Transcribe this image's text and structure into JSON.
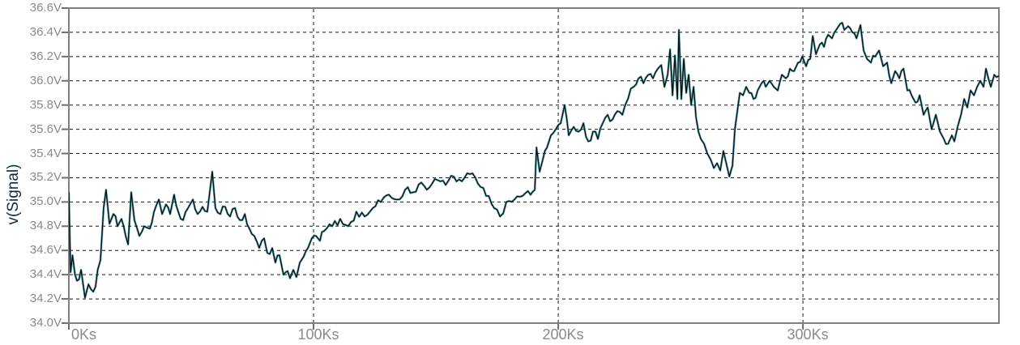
{
  "chart_data": {
    "type": "line",
    "title": "",
    "xlabel": "",
    "ylabel": "v(Signal)",
    "x_unit": "Ks",
    "y_unit": "V",
    "xlim": [
      0,
      380.1
    ],
    "ylim": [
      34.0,
      36.6
    ],
    "grid": {
      "horizontal": true,
      "vertical": true,
      "style": "dashed"
    },
    "legend": "none",
    "x_ticks": [
      {
        "value": 0,
        "label": "0Ks"
      },
      {
        "value": 100,
        "label": "100Ks"
      },
      {
        "value": 200,
        "label": "200Ks"
      },
      {
        "value": 300,
        "label": "300Ks"
      }
    ],
    "y_ticks": [
      {
        "value": 34.0,
        "label": "34.0V"
      },
      {
        "value": 34.2,
        "label": "34.2V"
      },
      {
        "value": 34.4,
        "label": "34.4V"
      },
      {
        "value": 34.6,
        "label": "34.6V"
      },
      {
        "value": 34.8,
        "label": "34.8V"
      },
      {
        "value": 35.0,
        "label": "35.0V"
      },
      {
        "value": 35.2,
        "label": "35.2V"
      },
      {
        "value": 35.4,
        "label": "35.4V"
      },
      {
        "value": 35.6,
        "label": "35.6V"
      },
      {
        "value": 35.8,
        "label": "35.8V"
      },
      {
        "value": 36.0,
        "label": "36.0V"
      },
      {
        "value": 36.2,
        "label": "36.2V"
      },
      {
        "value": 36.4,
        "label": "36.4V"
      },
      {
        "value": 36.6,
        "label": "36.6V"
      }
    ],
    "colors": {
      "background": "#ffffff",
      "frame": "#808080",
      "grid": "#141414",
      "tick_mark": "#6e6e6e",
      "tick_text": "#8a8a8a",
      "axis_title": "#0c2e33",
      "trace_core": "#031417",
      "trace_glow": "#1a7f86"
    },
    "texture": {
      "noise_amplitude": 0.035,
      "sample_step": 1.1,
      "seed": 7
    },
    "series": [
      {
        "name": "v(Signal)",
        "points": [
          [
            0,
            35.08
          ],
          [
            0.7,
            34.42
          ],
          [
            1.5,
            34.56
          ],
          [
            2.5,
            34.4
          ],
          [
            3.3,
            34.35
          ],
          [
            5,
            34.44
          ],
          [
            6.6,
            34.21
          ],
          [
            8,
            34.32
          ],
          [
            9,
            34.28
          ],
          [
            10.9,
            34.3
          ],
          [
            11.8,
            34.44
          ],
          [
            12.9,
            34.52
          ],
          [
            14.2,
            34.95
          ],
          [
            15.2,
            35.1
          ],
          [
            16.6,
            34.82
          ],
          [
            18.2,
            34.9
          ],
          [
            19.9,
            34.8
          ],
          [
            21.5,
            34.86
          ],
          [
            23.2,
            34.72
          ],
          [
            24.2,
            34.65
          ],
          [
            25.5,
            35.08
          ],
          [
            26.8,
            34.85
          ],
          [
            28.8,
            34.72
          ],
          [
            30.8,
            34.8
          ],
          [
            33.1,
            34.78
          ],
          [
            34.8,
            34.92
          ],
          [
            36.8,
            35.02
          ],
          [
            38.1,
            34.9
          ],
          [
            39.7,
            34.98
          ],
          [
            41.4,
            34.9
          ],
          [
            43,
            35.06
          ],
          [
            44.7,
            34.92
          ],
          [
            46.7,
            34.85
          ],
          [
            48.7,
            34.95
          ],
          [
            50.7,
            35.02
          ],
          [
            52.6,
            34.9
          ],
          [
            54.6,
            34.96
          ],
          [
            56.6,
            34.92
          ],
          [
            58.6,
            35.25
          ],
          [
            59.9,
            34.95
          ],
          [
            61.9,
            34.9
          ],
          [
            63.9,
            34.96
          ],
          [
            65.9,
            34.88
          ],
          [
            67.9,
            34.95
          ],
          [
            69.9,
            34.85
          ],
          [
            71.9,
            34.9
          ],
          [
            73.8,
            34.78
          ],
          [
            75.8,
            34.72
          ],
          [
            77.8,
            34.62
          ],
          [
            79.8,
            34.7
          ],
          [
            81.1,
            34.58
          ],
          [
            83.1,
            34.62
          ],
          [
            84.4,
            34.5
          ],
          [
            86.1,
            34.56
          ],
          [
            87.7,
            34.4
          ],
          [
            89.4,
            34.43
          ],
          [
            90.4,
            34.37
          ],
          [
            91.7,
            34.44
          ],
          [
            93,
            34.38
          ],
          [
            94.4,
            34.5
          ],
          [
            96,
            34.55
          ],
          [
            97.7,
            34.62
          ],
          [
            99.3,
            34.7
          ],
          [
            101,
            34.72
          ],
          [
            102.6,
            34.68
          ],
          [
            104.3,
            34.76
          ],
          [
            107.6,
            34.8
          ],
          [
            110.9,
            34.86
          ],
          [
            114.2,
            34.8
          ],
          [
            117.5,
            34.92
          ],
          [
            120.9,
            34.88
          ],
          [
            124.2,
            34.95
          ],
          [
            127.5,
            35.0
          ],
          [
            130.8,
            35.06
          ],
          [
            134.1,
            35.02
          ],
          [
            137.4,
            35.1
          ],
          [
            140.7,
            35.08
          ],
          [
            144,
            35.16
          ],
          [
            147.4,
            35.12
          ],
          [
            150.7,
            35.18
          ],
          [
            154,
            35.14
          ],
          [
            157.3,
            35.21
          ],
          [
            160.6,
            35.17
          ],
          [
            163.9,
            35.23
          ],
          [
            167.2,
            35.15
          ],
          [
            170.5,
            35.05
          ],
          [
            173.8,
            34.95
          ],
          [
            176.2,
            34.88
          ],
          [
            178.8,
            35.0
          ],
          [
            182.1,
            35.02
          ],
          [
            185.4,
            35.05
          ],
          [
            188.7,
            35.06
          ],
          [
            190.4,
            35.1
          ],
          [
            191.1,
            35.45
          ],
          [
            192.4,
            35.25
          ],
          [
            193.7,
            35.35
          ],
          [
            195.4,
            35.45
          ],
          [
            197,
            35.55
          ],
          [
            199,
            35.6
          ],
          [
            201,
            35.65
          ],
          [
            202.6,
            35.8
          ],
          [
            204.3,
            35.55
          ],
          [
            206.3,
            35.62
          ],
          [
            208.3,
            35.58
          ],
          [
            210.3,
            35.65
          ],
          [
            212.3,
            35.5
          ],
          [
            214.2,
            35.58
          ],
          [
            216.2,
            35.52
          ],
          [
            218.2,
            35.65
          ],
          [
            220.2,
            35.72
          ],
          [
            222.2,
            35.68
          ],
          [
            224.2,
            35.75
          ],
          [
            226.2,
            35.72
          ],
          [
            228.5,
            35.85
          ],
          [
            230.8,
            35.95
          ],
          [
            232.8,
            36.02
          ],
          [
            234.8,
            35.98
          ],
          [
            236.8,
            36.05
          ],
          [
            238.7,
            36.02
          ],
          [
            240.7,
            36.1
          ],
          [
            242.1,
            36.13
          ],
          [
            243.4,
            35.95
          ],
          [
            244.7,
            36.05
          ],
          [
            245.7,
            36.26
          ],
          [
            246.7,
            35.88
          ],
          [
            247.7,
            36.21
          ],
          [
            248.7,
            35.85
          ],
          [
            249.3,
            36.42
          ],
          [
            250.3,
            35.85
          ],
          [
            251.3,
            36.18
          ],
          [
            252.3,
            35.9
          ],
          [
            253.3,
            36.05
          ],
          [
            254.3,
            35.8
          ],
          [
            255.3,
            35.95
          ],
          [
            256.3,
            35.7
          ],
          [
            257.3,
            35.58
          ],
          [
            258.3,
            35.52
          ],
          [
            259.6,
            35.48
          ],
          [
            260.9,
            35.4
          ],
          [
            262.3,
            35.35
          ],
          [
            263.6,
            35.28
          ],
          [
            264.9,
            35.32
          ],
          [
            266.2,
            35.26
          ],
          [
            267.5,
            35.42
          ],
          [
            268.9,
            35.3
          ],
          [
            269.9,
            35.21
          ],
          [
            271.2,
            35.3
          ],
          [
            272.2,
            35.6
          ],
          [
            273.2,
            35.75
          ],
          [
            274.2,
            35.9
          ],
          [
            275.5,
            35.88
          ],
          [
            276.8,
            35.95
          ],
          [
            278.1,
            35.9
          ],
          [
            279.8,
            35.85
          ],
          [
            281.5,
            35.92
          ],
          [
            283.1,
            35.98
          ],
          [
            284.8,
            35.95
          ],
          [
            286.4,
            36.0
          ],
          [
            288.1,
            35.95
          ],
          [
            289.7,
            35.92
          ],
          [
            291.4,
            36.05
          ],
          [
            293,
            36.02
          ],
          [
            294.7,
            36.1
          ],
          [
            296.4,
            36.08
          ],
          [
            298,
            36.15
          ],
          [
            299.7,
            36.2
          ],
          [
            301.3,
            36.12
          ],
          [
            303,
            36.18
          ],
          [
            304,
            36.37
          ],
          [
            305.3,
            36.22
          ],
          [
            306.9,
            36.3
          ],
          [
            308.6,
            36.28
          ],
          [
            310.3,
            36.38
          ],
          [
            311.9,
            36.35
          ],
          [
            313.6,
            36.42
          ],
          [
            315.2,
            36.47
          ],
          [
            316.9,
            36.42
          ],
          [
            318.5,
            36.45
          ],
          [
            320.2,
            36.4
          ],
          [
            321.9,
            36.35
          ],
          [
            323.5,
            36.46
          ],
          [
            324.8,
            36.25
          ],
          [
            326.2,
            36.18
          ],
          [
            327.8,
            36.15
          ],
          [
            329.5,
            36.2
          ],
          [
            331.1,
            36.25
          ],
          [
            332.8,
            36.12
          ],
          [
            334.4,
            36.15
          ],
          [
            336.1,
            35.98
          ],
          [
            337.7,
            36.08
          ],
          [
            339.4,
            36.02
          ],
          [
            341.1,
            36.1
          ],
          [
            342.7,
            35.92
          ],
          [
            344.4,
            35.88
          ],
          [
            346,
            35.82
          ],
          [
            347.7,
            35.88
          ],
          [
            349.3,
            35.72
          ],
          [
            351,
            35.78
          ],
          [
            352.6,
            35.6
          ],
          [
            354.3,
            35.72
          ],
          [
            356,
            35.58
          ],
          [
            357.6,
            35.52
          ],
          [
            359.3,
            35.48
          ],
          [
            360.9,
            35.55
          ],
          [
            361.9,
            35.5
          ],
          [
            363.2,
            35.62
          ],
          [
            364.6,
            35.72
          ],
          [
            365.9,
            35.85
          ],
          [
            367.2,
            35.78
          ],
          [
            368.5,
            35.92
          ],
          [
            369.9,
            35.88
          ],
          [
            371.2,
            35.95
          ],
          [
            372.5,
            36.0
          ],
          [
            373.8,
            35.95
          ],
          [
            374.8,
            36.1
          ],
          [
            375.8,
            36.02
          ],
          [
            376.8,
            35.95
          ],
          [
            378.2,
            36.05
          ],
          [
            379.1,
            36.03
          ],
          [
            380.1,
            36.04
          ]
        ]
      }
    ]
  }
}
